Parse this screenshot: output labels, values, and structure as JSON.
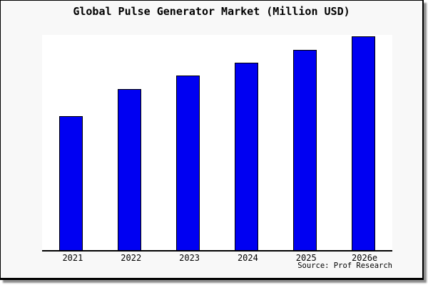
{
  "chart_data": {
    "type": "bar",
    "title": "Global Pulse Generator Market (Million USD)",
    "categories": [
      "2021",
      "2022",
      "2023",
      "2024",
      "2025",
      "2026e"
    ],
    "values": [
      62.3,
      74.8,
      81.1,
      87.2,
      93.0,
      99.2
    ],
    "y_axis_shown": false,
    "values_note": "no y-axis or gridlines shown; values are relative bar heights in % of plot height",
    "ylim": [
      0,
      100
    ],
    "xlabel": "",
    "ylabel": "",
    "grid": false,
    "legend": false,
    "bar_color": "#0000f2",
    "bar_border_color": "#000000",
    "axis_color": "#000000",
    "plot_background": "#ffffff",
    "frame_background": "#f8f8f8",
    "text_color": "#000000"
  },
  "source": {
    "label": "Source: Prof Research"
  }
}
